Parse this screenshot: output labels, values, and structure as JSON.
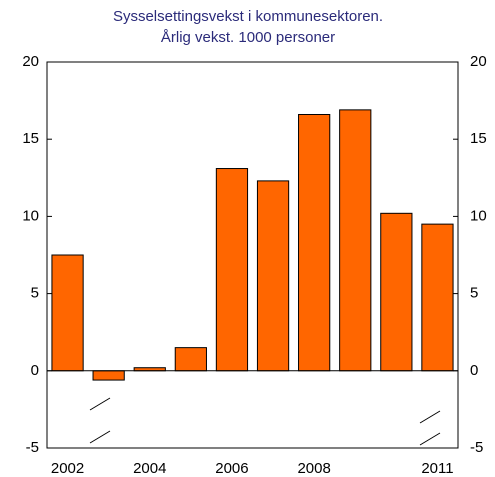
{
  "chart_data": {
    "type": "bar",
    "title": [
      "Sysselsettingsvekst i kommunesektoren.",
      "Årlig vekst. 1000 personer"
    ],
    "categories": [
      "2002",
      null,
      "2004",
      null,
      "2006",
      null,
      "2008",
      null,
      null,
      "2011"
    ],
    "values": [
      7.5,
      -0.6,
      0.2,
      1.5,
      13.1,
      12.3,
      16.6,
      16.9,
      10.2,
      9.5
    ],
    "color": "#ff6600",
    "ylim": [
      -5,
      20
    ],
    "yticks": [
      -5,
      0,
      5,
      10,
      15,
      20
    ],
    "y2lim": [
      -5,
      20
    ],
    "y2ticks": [
      -5,
      0,
      5,
      10,
      15,
      20
    ],
    "grid": false
  }
}
